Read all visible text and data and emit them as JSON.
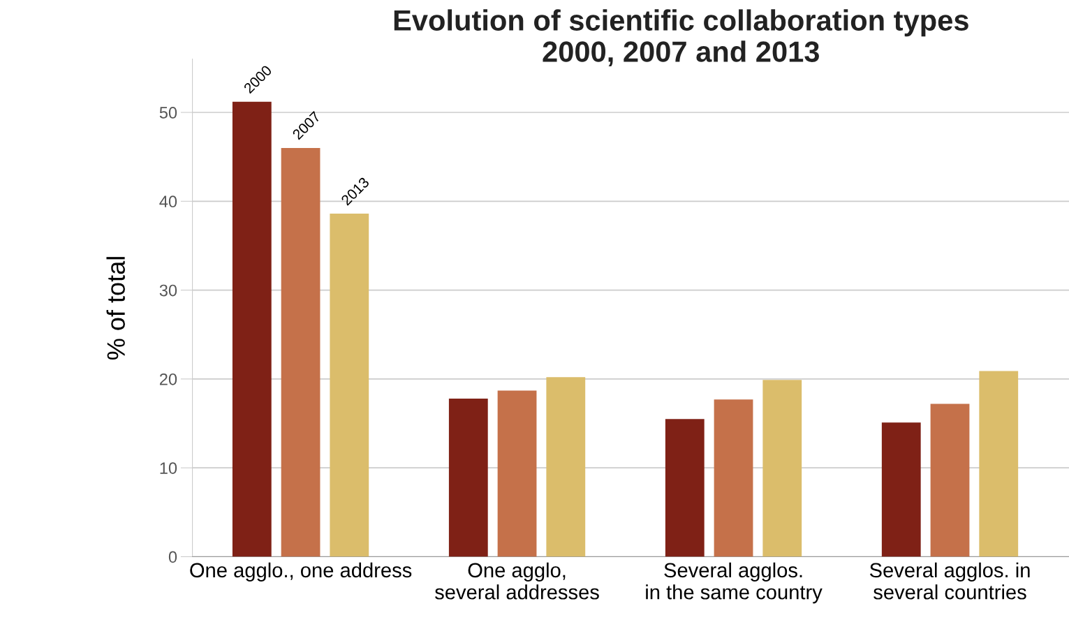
{
  "chart_data": {
    "type": "bar",
    "title": "Evolution of scientific collaboration types\n2000, 2007 and 2013",
    "ylabel": "% of total",
    "categories": [
      "One agglo., one address",
      "One agglo,\nseveral addresses",
      "Several agglos.\nin the same country",
      "Several agglos. in\nseveral countries"
    ],
    "series": [
      {
        "name": "2000",
        "color": "#7f2116",
        "values": [
          51.2,
          17.8,
          15.5,
          15.1
        ]
      },
      {
        "name": "2007",
        "color": "#c5714a",
        "values": [
          46.0,
          18.7,
          17.7,
          17.2
        ]
      },
      {
        "name": "2013",
        "color": "#dbbd6b",
        "values": [
          38.6,
          20.2,
          19.9,
          20.9
        ]
      }
    ],
    "ylim": [
      0,
      56
    ],
    "yticks": [
      0,
      10,
      20,
      30,
      40,
      50
    ],
    "grid": "y",
    "legend": false
  }
}
